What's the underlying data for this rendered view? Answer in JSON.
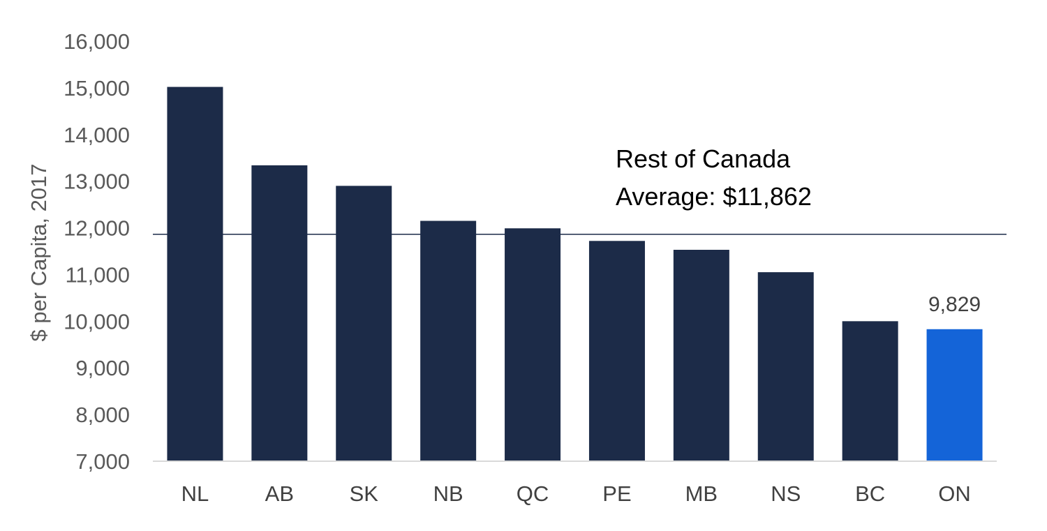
{
  "chart_data": {
    "type": "bar",
    "title": "",
    "xlabel": "",
    "ylabel": "$ per Capita, 2017",
    "categories": [
      "NL",
      "AB",
      "SK",
      "NB",
      "QC",
      "PE",
      "MB",
      "NS",
      "BC",
      "ON"
    ],
    "values": [
      15020,
      13340,
      12900,
      12150,
      11990,
      11720,
      11530,
      11050,
      10000,
      9829
    ],
    "ylim": [
      7000,
      16000
    ],
    "yticks": [
      7000,
      8000,
      9000,
      10000,
      11000,
      12000,
      13000,
      14000,
      15000,
      16000
    ],
    "ytick_labels": [
      "7,000",
      "8,000",
      "9,000",
      "10,000",
      "11,000",
      "12,000",
      "13,000",
      "14,000",
      "15,000",
      "16,000"
    ],
    "grid": false,
    "legend": "none",
    "bar_color": "#1c2b48",
    "highlight": {
      "category": "ON",
      "color": "#1464d8",
      "label": "9,829"
    },
    "reference_line": {
      "value": 11862,
      "color": "#1c2b48",
      "label_line1": "Rest of Canada",
      "label_line2": "Average: $11,862"
    }
  }
}
